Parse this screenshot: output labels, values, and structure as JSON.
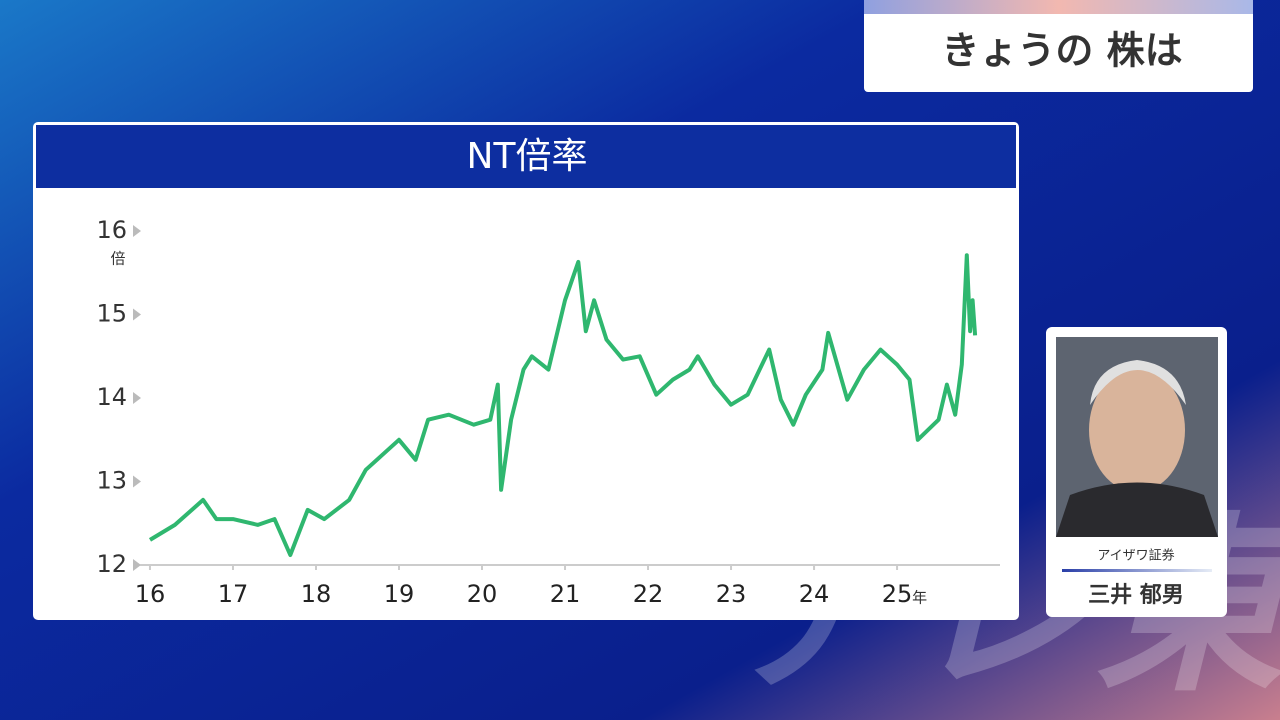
{
  "header": {
    "title": "きょうの 株は"
  },
  "chart_data": {
    "type": "line",
    "title": "NT倍率",
    "y_unit": "倍",
    "x_unit": "年",
    "color": "#2fb76f",
    "x": [
      16.0,
      16.3,
      16.64,
      16.8,
      17.0,
      17.3,
      17.5,
      17.69,
      17.9,
      18.1,
      18.4,
      18.6,
      18.8,
      19.0,
      19.2,
      19.35,
      19.6,
      19.9,
      20.1,
      20.19,
      20.23,
      20.35,
      20.5,
      20.6,
      20.8,
      21.0,
      21.16,
      21.25,
      21.35,
      21.5,
      21.7,
      21.9,
      22.1,
      22.3,
      22.5,
      22.6,
      22.8,
      23.0,
      23.2,
      23.46,
      23.6,
      23.75,
      23.9,
      24.1,
      24.17,
      24.4,
      24.6,
      24.8,
      25.0,
      25.15,
      25.25,
      25.5,
      25.6,
      25.7,
      25.78,
      25.84,
      25.88,
      25.91,
      25.94
    ],
    "values": [
      12.3,
      12.48,
      12.78,
      12.55,
      12.55,
      12.48,
      12.55,
      12.12,
      12.66,
      12.55,
      12.78,
      13.14,
      13.32,
      13.5,
      13.26,
      13.74,
      13.8,
      13.68,
      13.74,
      14.16,
      12.9,
      13.74,
      14.34,
      14.5,
      14.34,
      15.17,
      15.63,
      14.8,
      15.17,
      14.7,
      14.46,
      14.5,
      14.04,
      14.22,
      14.34,
      14.5,
      14.16,
      13.92,
      14.04,
      14.58,
      13.98,
      13.68,
      14.04,
      14.34,
      14.78,
      13.98,
      14.34,
      14.58,
      14.4,
      14.22,
      13.5,
      13.74,
      14.16,
      13.8,
      14.4,
      15.71,
      14.8,
      15.17,
      14.75
    ],
    "xlim": [
      15.88,
      26.24
    ],
    "xticks": [
      16,
      17,
      18,
      19,
      20,
      21,
      22,
      23,
      24,
      25
    ],
    "ylim": [
      12,
      16
    ],
    "yticks": [
      12,
      13,
      14,
      15,
      16
    ]
  },
  "guest": {
    "company": "アイザワ証券",
    "name": "三井 郁男"
  },
  "watermark": "テレ東"
}
